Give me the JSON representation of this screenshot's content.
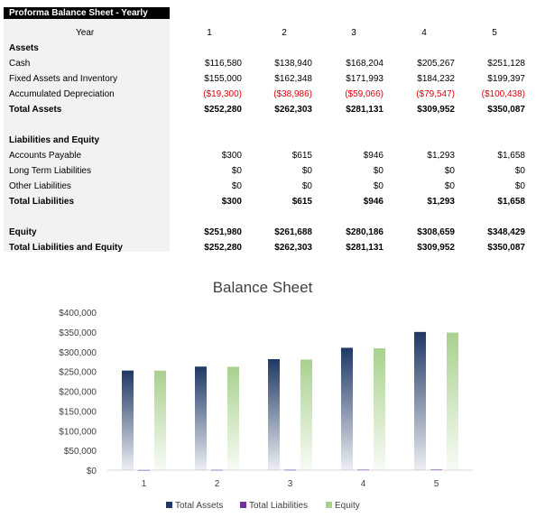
{
  "sheet": {
    "title": "Proforma Balance Sheet - Yearly",
    "header": {
      "label": "Year",
      "years": [
        "1",
        "2",
        "3",
        "4",
        "5"
      ]
    },
    "rows": [
      {
        "label": "Assets",
        "bold": true,
        "values": []
      },
      {
        "label": "Cash",
        "values": [
          "$116,580",
          "$138,940",
          "$168,204",
          "$205,267",
          "$251,128"
        ]
      },
      {
        "label": "Fixed Assets and Inventory",
        "values": [
          "$155,000",
          "$162,348",
          "$171,993",
          "$184,232",
          "$199,397"
        ]
      },
      {
        "label": "Accumulated Depreciation",
        "negative": true,
        "values": [
          "($19,300)",
          "($38,986)",
          "($59,066)",
          "($79,547)",
          "($100,438)"
        ]
      },
      {
        "label": "Total Assets",
        "bold": true,
        "values": [
          "$252,280",
          "$262,303",
          "$281,131",
          "$309,952",
          "$350,087"
        ]
      },
      {
        "label": "",
        "values": []
      },
      {
        "label": "Liabilities and Equity",
        "bold": true,
        "values": []
      },
      {
        "label": "Accounts Payable",
        "values": [
          "$300",
          "$615",
          "$946",
          "$1,293",
          "$1,658"
        ]
      },
      {
        "label": "Long Term Liabilities",
        "values": [
          "$0",
          "$0",
          "$0",
          "$0",
          "$0"
        ]
      },
      {
        "label": "Other Liabilities",
        "values": [
          "$0",
          "$0",
          "$0",
          "$0",
          "$0"
        ]
      },
      {
        "label": "Total Liabilities",
        "bold": true,
        "values": [
          "$300",
          "$615",
          "$946",
          "$1,293",
          "$1,658"
        ]
      },
      {
        "label": "",
        "values": []
      },
      {
        "label": "Equity",
        "bold": true,
        "values": [
          "$251,980",
          "$261,688",
          "$280,186",
          "$308,659",
          "$348,429"
        ]
      },
      {
        "label": "Total Liabilities and Equity",
        "bold": true,
        "values": [
          "$252,280",
          "$262,303",
          "$281,131",
          "$309,952",
          "$350,087"
        ]
      }
    ]
  },
  "chart_data": {
    "type": "bar",
    "title": "Balance Sheet",
    "categories": [
      "1",
      "2",
      "3",
      "4",
      "5"
    ],
    "series": [
      {
        "name": "Total Assets",
        "color": "#1f3864",
        "values": [
          252280,
          262303,
          281131,
          309952,
          350087
        ]
      },
      {
        "name": "Total Liabilities",
        "color": "#7030a0",
        "values": [
          300,
          615,
          946,
          1293,
          1658
        ]
      },
      {
        "name": "Equity",
        "color": "#a9d18e",
        "values": [
          251980,
          261688,
          280186,
          308659,
          348429
        ]
      }
    ],
    "ylim": [
      0,
      400000
    ],
    "yticks": [
      "$0",
      "$50,000",
      "$100,000",
      "$150,000",
      "$200,000",
      "$250,000",
      "$300,000",
      "$350,000",
      "$400,000"
    ],
    "grid": false,
    "legend": "bottom"
  }
}
